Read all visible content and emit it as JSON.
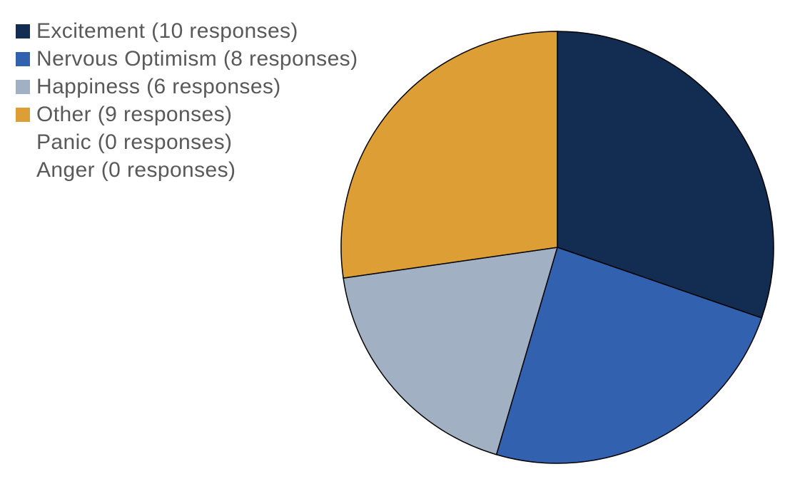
{
  "chart_data": {
    "type": "pie",
    "title": "",
    "legend_position": "top-left",
    "slices": [
      {
        "label": "Excitement (10 responses)",
        "value": 10,
        "color": "#132d52"
      },
      {
        "label": "Nervous Optimism (8 responses)",
        "value": 8,
        "color": "#3262af"
      },
      {
        "label": "Happiness (6 responses)",
        "value": 6,
        "color": "#a2b0c3"
      },
      {
        "label": "Other (9 responses)",
        "value": 9,
        "color": "#dd9e36"
      },
      {
        "label": "Panic (0 responses)",
        "value": 0,
        "color": "#c00000"
      },
      {
        "label": "Anger (0 responses)",
        "value": 0,
        "color": "#7f7f7f"
      }
    ]
  }
}
